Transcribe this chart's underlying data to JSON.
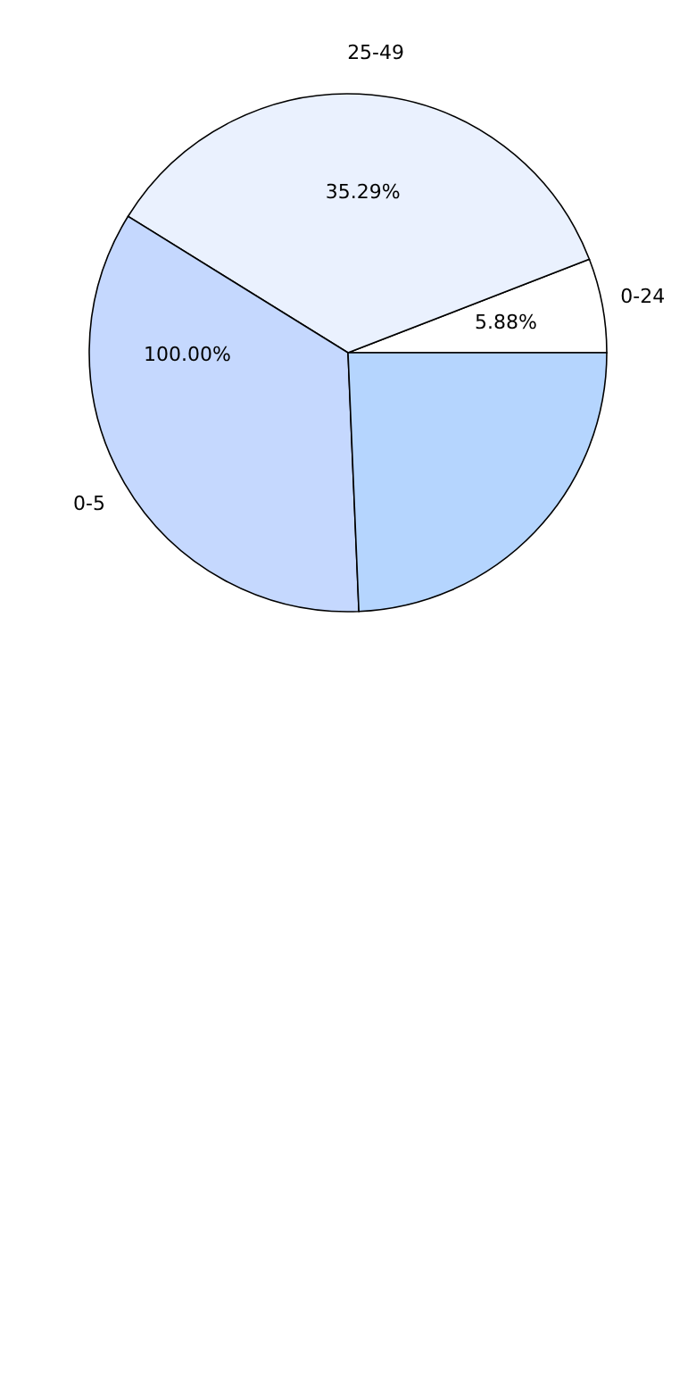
{
  "chart_data": {
    "type": "pie",
    "categories": [
      "0-24",
      "25-49",
      "0-5",
      null
    ],
    "values": [
      5.88,
      35.29,
      34.5,
      24.33
    ],
    "colors": [
      "#ffffff",
      "#eaf1fe",
      "#c5d8fe",
      "#b5d5fe"
    ],
    "value_labels": [
      "5.88%",
      "35.29%",
      null,
      null
    ],
    "annotations": [
      "100.00%"
    ],
    "legend": false
  }
}
